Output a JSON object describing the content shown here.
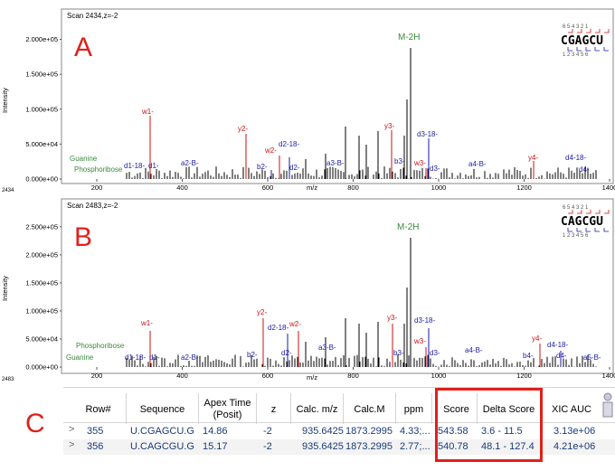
{
  "panels": [
    {
      "letter": "A",
      "scan": "Scan 2434,z=-2",
      "footer_id": "2434",
      "y_axis_label": "Intensity",
      "y_ticks": [
        "2.000e+05",
        "1.500e+05",
        "1.000e+05",
        "5.000e+04",
        "0.000e+00"
      ],
      "x_ticks": [
        "200",
        "400",
        "600",
        "800",
        "1000",
        "1200",
        "1400"
      ],
      "x_label": "m/z",
      "precursor": "M-2H",
      "seq_top": "6 5 4 3 2 1",
      "seq_main": "CGAGCU",
      "seq_bottom": "1 2 3 4 5 6",
      "labels": {
        "guanine": "Guanine",
        "phosphoribose": "Phosphoribose",
        "w1": "w1-",
        "d1_18": "d1-18-",
        "d1": "d1-",
        "a2b": "a2-B-",
        "y2": "y2-",
        "b2": "b2-",
        "w2": "w2-",
        "d2_18": "d2-18-",
        "d2": "d2-",
        "a3b": "a3-B-",
        "y3": "y3-",
        "b3": "b3-",
        "d3_18": "d3-18-",
        "w3": "w3-",
        "d3": "d3-",
        "a4b": "a4-B-",
        "y4": "y4-",
        "d4_18": "d4-18-",
        "d4": "d4-"
      }
    },
    {
      "letter": "B",
      "scan": "Scan 2483,z=-2",
      "footer_id": "2483",
      "y_axis_label": "Intensity",
      "y_ticks": [
        "2.500e+05",
        "2.000e+05",
        "1.500e+05",
        "1.000e+05",
        "5.000e+04",
        "0.000e+00"
      ],
      "x_ticks": [
        "200",
        "400",
        "600",
        "800",
        "1000",
        "1200",
        "1400"
      ],
      "x_label": "m/z",
      "precursor": "M-2H",
      "seq_top": "6 5 4 3 2 1",
      "seq_main": "CAGCGU",
      "seq_bottom": "1 2 3 4 5 6",
      "labels": {
        "guanine": "Guanine",
        "phosphoribose": "Phosphoribose",
        "w1": "w1-",
        "d1_18": "d1-18-",
        "d1": "d1-",
        "a2b": "a2-B-",
        "y2": "y2-",
        "b2": "b2-",
        "w2": "w2-",
        "d2_18": "d2-18-",
        "d2": "d2-",
        "a3b": "a3-B-",
        "y3": "y3-",
        "b3": "b3-",
        "d3_18": "d3-18-",
        "w3": "w3-",
        "d3": "d3-",
        "a4b": "a4-B-",
        "y4": "y4-",
        "d4_18": "d4-18-",
        "d4": "d4-",
        "b4": "b4-",
        "a5b": "a5-B-"
      }
    }
  ],
  "table": {
    "letter": "C",
    "columns": [
      "Row#",
      "Sequence",
      "Apex Time (Posit)",
      "z",
      "Calc. m/z",
      "Calc.M",
      "ppm",
      "Score",
      "Delta Score",
      "XIC AUC"
    ],
    "rows": [
      {
        "row": "355",
        "sequence": "U.CGAGCU.G",
        "apex": "14.86",
        "z": "-2",
        "mz": "935.6425",
        "m": "1873.2995",
        "ppm": "4.33;...",
        "score": "543.58",
        "delta": "3.6 - 11.5",
        "xic": "3.13e+06"
      },
      {
        "row": "356",
        "sequence": "U.CAGCGU.G",
        "apex": "15.17",
        "z": "-2",
        "mz": "935.6425",
        "m": "1873.2995",
        "ppm": "2.77;...",
        "score": "540.78",
        "delta": "48.1 - 127.4",
        "xic": "4.21e+06"
      }
    ]
  },
  "colors": {
    "accent_red": "#e0201a",
    "ion_red": "#cc1111",
    "ion_blue": "#1a1aaa",
    "ion_green": "#3a8a3a",
    "peak": "#000000"
  }
}
